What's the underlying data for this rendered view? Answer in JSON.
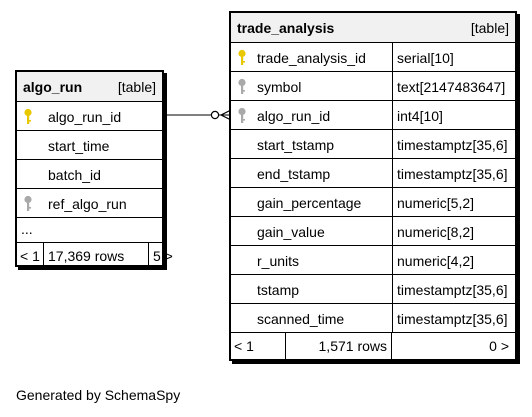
{
  "tables": {
    "algo_run": {
      "name": "algo_run",
      "type_label": "[table]",
      "columns": [
        {
          "name": "algo_run_id",
          "key": "primary"
        },
        {
          "name": "start_time",
          "key": "none"
        },
        {
          "name": "batch_id",
          "key": "none"
        },
        {
          "name": "ref_algo_run",
          "key": "foreign"
        }
      ],
      "ellipsis": "...",
      "footer": {
        "parents": "< 1",
        "rows": "17,369 rows",
        "children": "5 >"
      }
    },
    "trade_analysis": {
      "name": "trade_analysis",
      "type_label": "[table]",
      "columns": [
        {
          "name": "trade_analysis_id",
          "type": "serial[10]",
          "key": "primary"
        },
        {
          "name": "symbol",
          "type": "text[2147483647]",
          "key": "foreign"
        },
        {
          "name": "algo_run_id",
          "type": "int4[10]",
          "key": "foreign"
        },
        {
          "name": "start_tstamp",
          "type": "timestamptz[35,6]",
          "key": "none"
        },
        {
          "name": "end_tstamp",
          "type": "timestamptz[35,6]",
          "key": "none"
        },
        {
          "name": "gain_percentage",
          "type": "numeric[5,2]",
          "key": "none"
        },
        {
          "name": "gain_value",
          "type": "numeric[8,2]",
          "key": "none"
        },
        {
          "name": "r_units",
          "type": "numeric[4,2]",
          "key": "none"
        },
        {
          "name": "tstamp",
          "type": "timestamptz[35,6]",
          "key": "none"
        },
        {
          "name": "scanned_time",
          "type": "timestamptz[35,6]",
          "key": "none"
        }
      ],
      "footer": {
        "parents": "< 1",
        "rows": "1,571 rows",
        "children": "0 >"
      }
    }
  },
  "colors": {
    "primary_key": "#e8c800",
    "foreign_key": "#a9a9a9"
  },
  "icons": {
    "primary": "key-icon",
    "foreign": "key-icon"
  },
  "generated_by": "Generated by SchemaSpy"
}
